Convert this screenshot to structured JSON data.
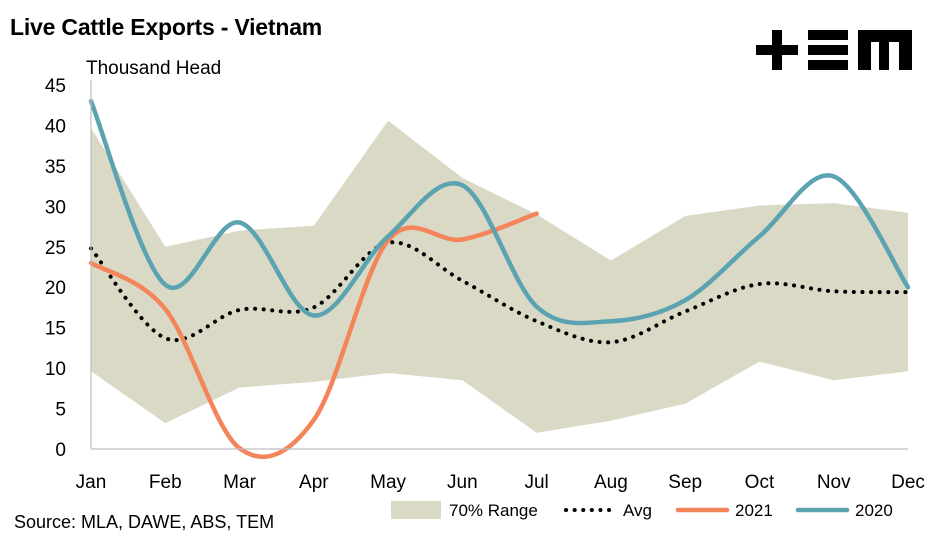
{
  "header": {
    "title": "Live Cattle Exports - Vietnam",
    "unit": "Thousand Head",
    "source": "Source: MLA, DAWE, ABS, TEM",
    "logo_text": "TEM"
  },
  "chart_data": {
    "type": "line",
    "title": "Live Cattle Exports - Vietnam",
    "ylabel": "Thousand Head",
    "xlabel": "",
    "categories": [
      "Jan",
      "Feb",
      "Mar",
      "Apr",
      "May",
      "Jun",
      "Jul",
      "Aug",
      "Sep",
      "Oct",
      "Nov",
      "Dec"
    ],
    "ylim": [
      0,
      45
    ],
    "yticks": [
      0,
      5,
      10,
      15,
      20,
      25,
      30,
      35,
      40,
      45
    ],
    "grid": false,
    "legend_position": "bottom-right",
    "range_band": {
      "name": "70% Range",
      "color": "#d9d9c6",
      "upper": [
        39.7,
        25.0,
        27.0,
        27.6,
        40.6,
        33.5,
        29.0,
        23.3,
        28.8,
        30.1,
        30.4,
        29.2
      ],
      "lower": [
        9.6,
        3.2,
        7.6,
        8.3,
        9.4,
        8.5,
        2.0,
        3.5,
        5.6,
        10.8,
        8.5,
        9.6
      ]
    },
    "series": [
      {
        "name": "Avg",
        "style": "dotted",
        "color": "#000000",
        "values": [
          24.8,
          13.7,
          17.2,
          17.5,
          25.5,
          20.8,
          15.8,
          13.2,
          17.0,
          20.4,
          19.5,
          19.4
        ]
      },
      {
        "name": "2021",
        "style": "solid",
        "color": "#f4845a",
        "values": [
          23.0,
          17.3,
          0.1,
          3.6,
          25.8,
          25.9,
          29.1,
          null,
          null,
          null,
          null,
          null
        ]
      },
      {
        "name": "2020",
        "style": "solid",
        "color": "#5ba3b0",
        "values": [
          43.0,
          20.3,
          28.0,
          16.5,
          26.3,
          32.6,
          17.6,
          15.8,
          18.4,
          26.3,
          33.7,
          20.0
        ]
      }
    ]
  }
}
